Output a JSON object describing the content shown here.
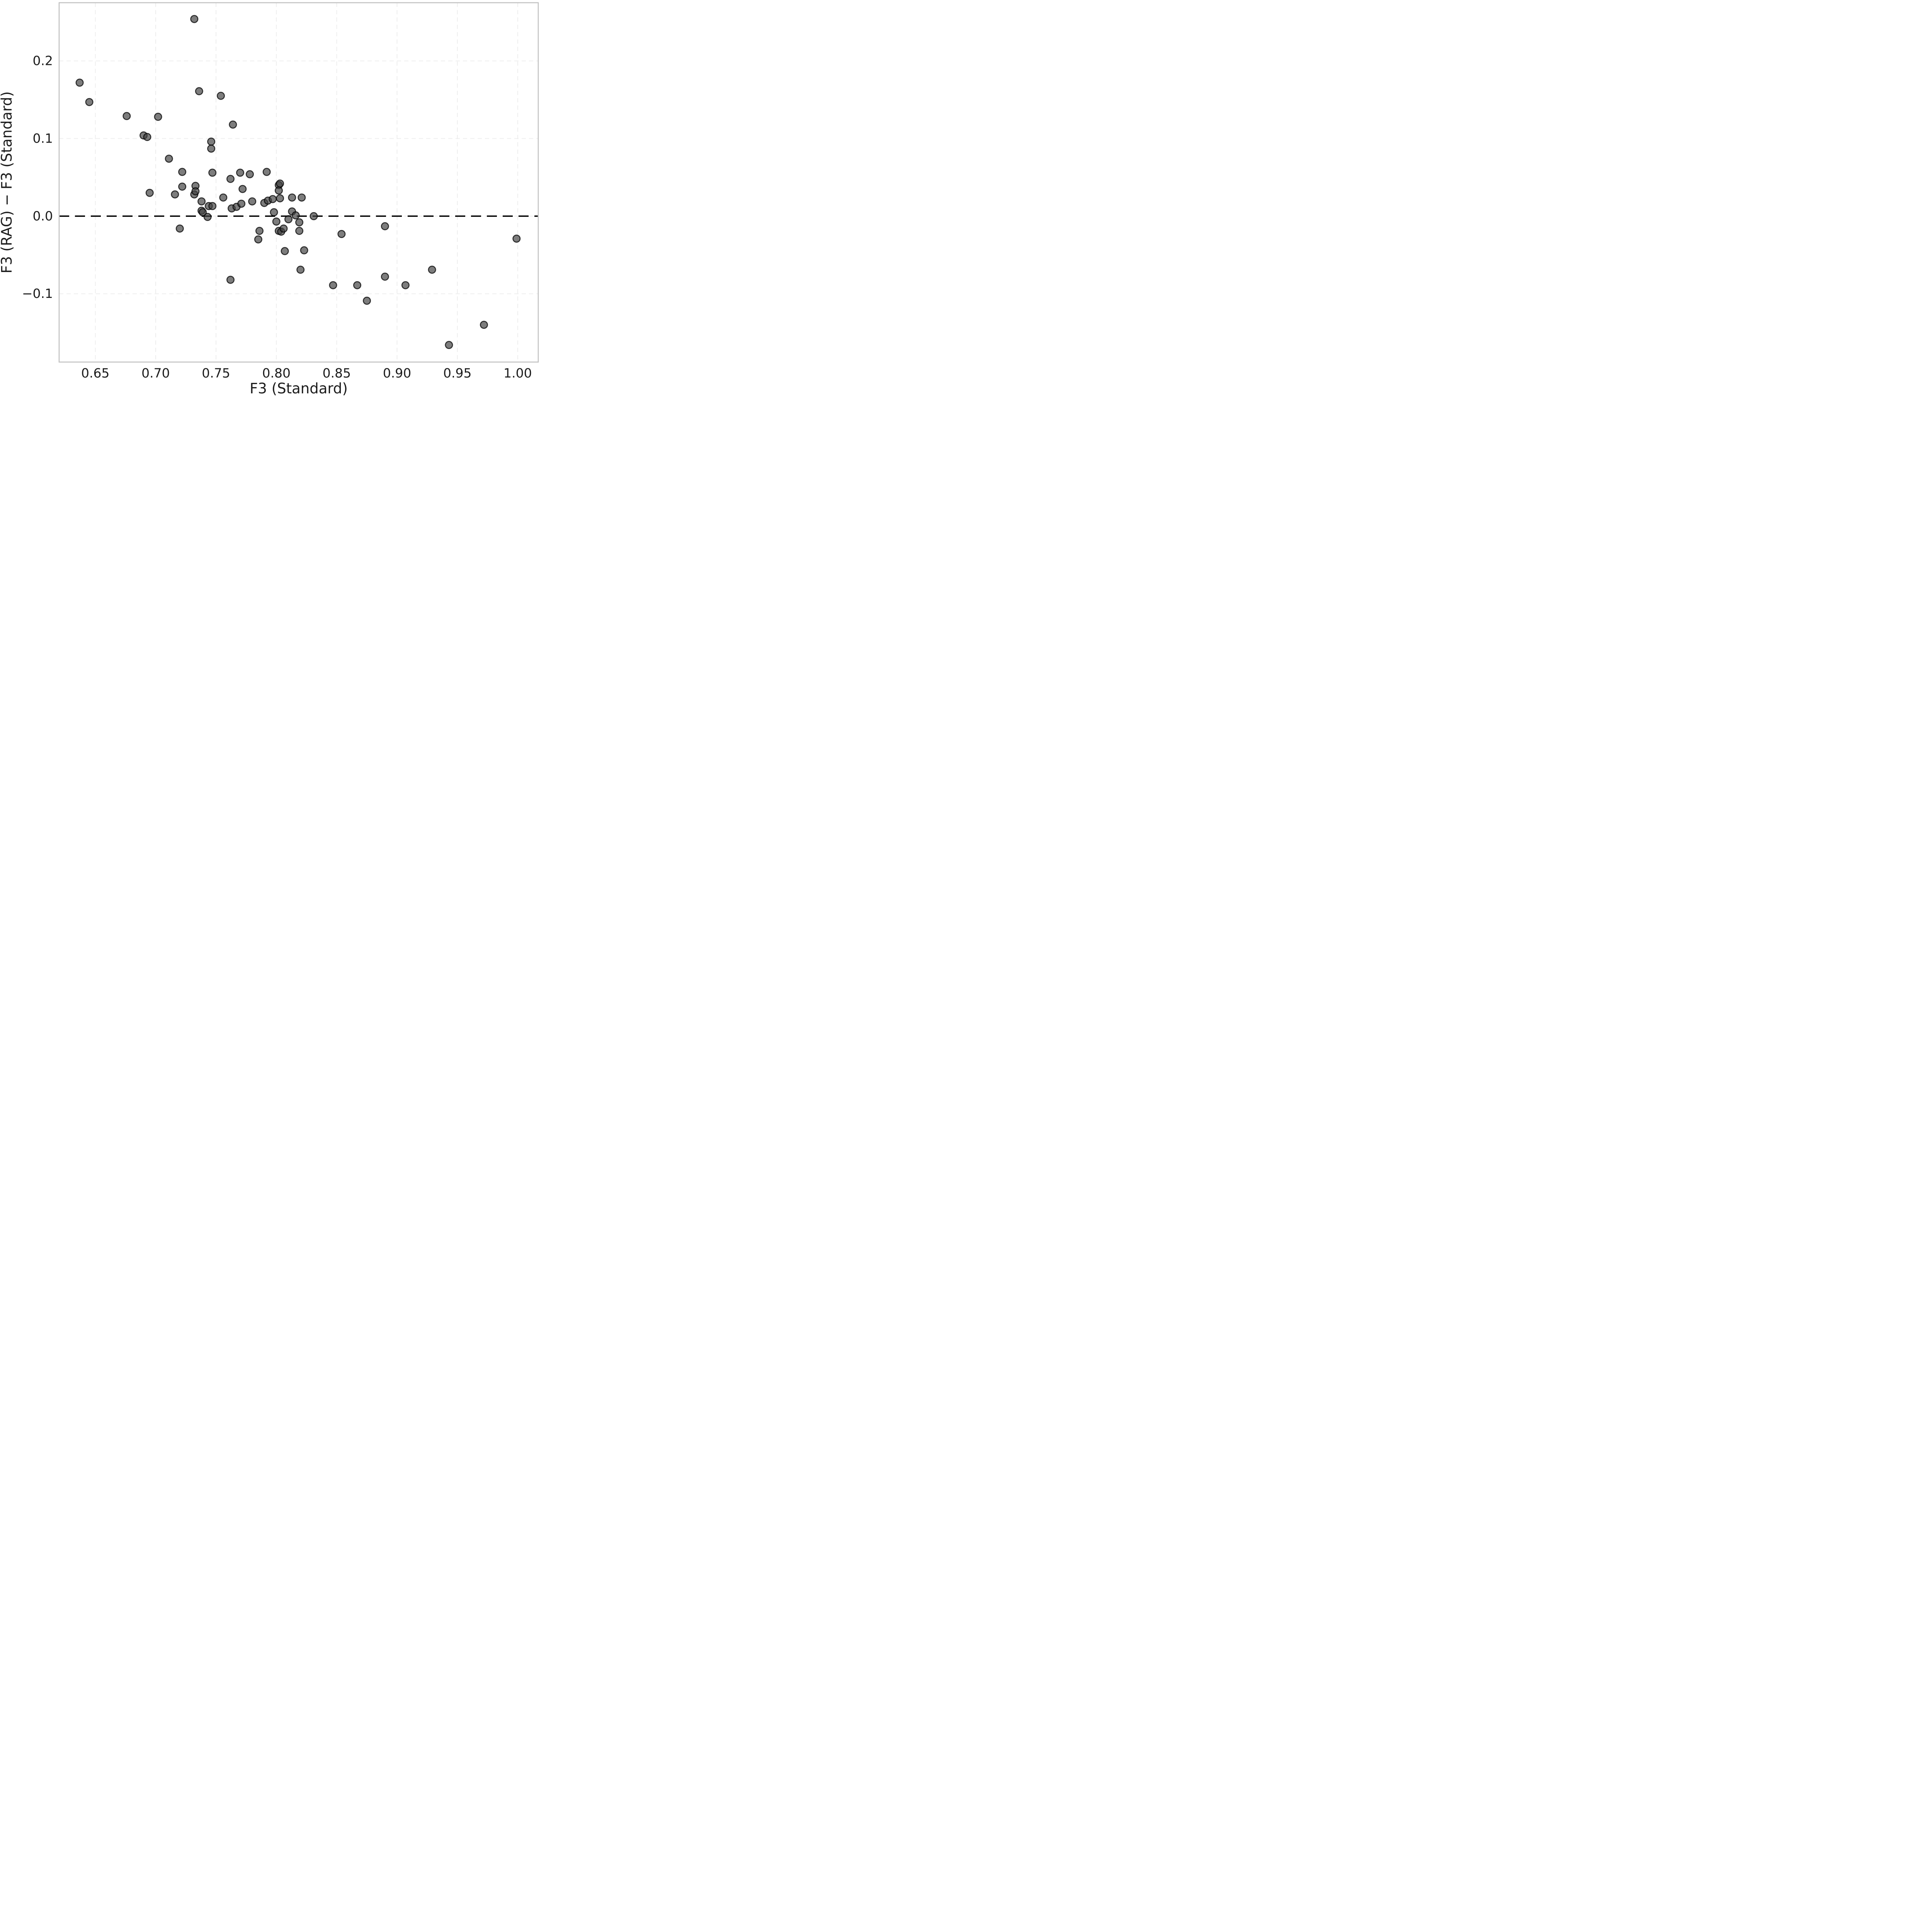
{
  "chart_data": {
    "type": "scatter",
    "title": "",
    "xlabel": "F3 (Standard)",
    "ylabel": "F3 (RAG) − F3 (Standard)",
    "xlim": [
      0.62,
      1.017
    ],
    "ylim": [
      -0.188,
      0.275
    ],
    "x_ticks": [
      0.65,
      0.7,
      0.75,
      0.8,
      0.85,
      0.9,
      0.95,
      1.0
    ],
    "x_tick_labels": [
      "0.65",
      "0.70",
      "0.75",
      "0.80",
      "0.85",
      "0.90",
      "0.95",
      "1.00"
    ],
    "y_ticks": [
      0.2,
      0.1,
      0.0,
      -0.1
    ],
    "y_tick_labels": [
      "0.2",
      "0.1",
      "0.0",
      "−0.1"
    ],
    "grid": "dashed major gridlines, both axes",
    "legend_position": "none",
    "reference_line": {
      "y": 0.0,
      "style": "dashed",
      "color": "#000000"
    },
    "points": [
      [
        0.637,
        0.172
      ],
      [
        0.645,
        0.147
      ],
      [
        0.676,
        0.129
      ],
      [
        0.69,
        0.104
      ],
      [
        0.693,
        0.102
      ],
      [
        0.695,
        0.03
      ],
      [
        0.702,
        0.128
      ],
      [
        0.711,
        0.074
      ],
      [
        0.716,
        0.028
      ],
      [
        0.72,
        -0.016
      ],
      [
        0.722,
        0.057
      ],
      [
        0.722,
        0.038
      ],
      [
        0.732,
        0.254
      ],
      [
        0.732,
        0.028
      ],
      [
        0.733,
        0.039
      ],
      [
        0.733,
        0.032
      ],
      [
        0.736,
        0.161
      ],
      [
        0.738,
        0.019
      ],
      [
        0.738,
        0.007
      ],
      [
        0.739,
        0.005
      ],
      [
        0.743,
        -0.001
      ],
      [
        0.744,
        0.013
      ],
      [
        0.746,
        0.096
      ],
      [
        0.746,
        0.087
      ],
      [
        0.747,
        0.056
      ],
      [
        0.747,
        0.013
      ],
      [
        0.754,
        0.155
      ],
      [
        0.756,
        0.024
      ],
      [
        0.762,
        0.048
      ],
      [
        0.762,
        -0.082
      ],
      [
        0.763,
        0.01
      ],
      [
        0.764,
        0.118
      ],
      [
        0.767,
        0.012
      ],
      [
        0.77,
        0.056
      ],
      [
        0.771,
        0.016
      ],
      [
        0.772,
        0.035
      ],
      [
        0.778,
        0.054
      ],
      [
        0.78,
        0.019
      ],
      [
        0.785,
        -0.03
      ],
      [
        0.786,
        -0.019
      ],
      [
        0.79,
        0.017
      ],
      [
        0.792,
        0.057
      ],
      [
        0.793,
        0.02
      ],
      [
        0.797,
        0.022
      ],
      [
        0.798,
        0.005
      ],
      [
        0.8,
        -0.007
      ],
      [
        0.802,
        0.04
      ],
      [
        0.802,
        0.033
      ],
      [
        0.802,
        -0.019
      ],
      [
        0.803,
        0.042
      ],
      [
        0.803,
        0.023
      ],
      [
        0.804,
        -0.02
      ],
      [
        0.806,
        -0.016
      ],
      [
        0.807,
        -0.045
      ],
      [
        0.81,
        -0.004
      ],
      [
        0.813,
        0.024
      ],
      [
        0.813,
        0.006
      ],
      [
        0.816,
        0.001
      ],
      [
        0.819,
        -0.008
      ],
      [
        0.819,
        -0.019
      ],
      [
        0.82,
        -0.069
      ],
      [
        0.821,
        0.024
      ],
      [
        0.823,
        -0.044
      ],
      [
        0.831,
        0.0
      ],
      [
        0.847,
        -0.089
      ],
      [
        0.854,
        -0.023
      ],
      [
        0.867,
        -0.089
      ],
      [
        0.875,
        -0.109
      ],
      [
        0.89,
        -0.013
      ],
      [
        0.89,
        -0.078
      ],
      [
        0.907,
        -0.089
      ],
      [
        0.929,
        -0.069
      ],
      [
        0.943,
        -0.166
      ],
      [
        0.972,
        -0.14
      ],
      [
        0.999,
        -0.029
      ]
    ]
  },
  "style": {
    "background": "#ffffff",
    "panel_border_color": "#c2c2c2",
    "gridline_color": "#ececec",
    "point_fill": "#3f3f3f",
    "point_fill_opacity": 0.68,
    "point_stroke": "#000000",
    "point_stroke_opacity": 0.75,
    "zero_line_color": "#000000",
    "text_color": "#1c1c1c"
  }
}
